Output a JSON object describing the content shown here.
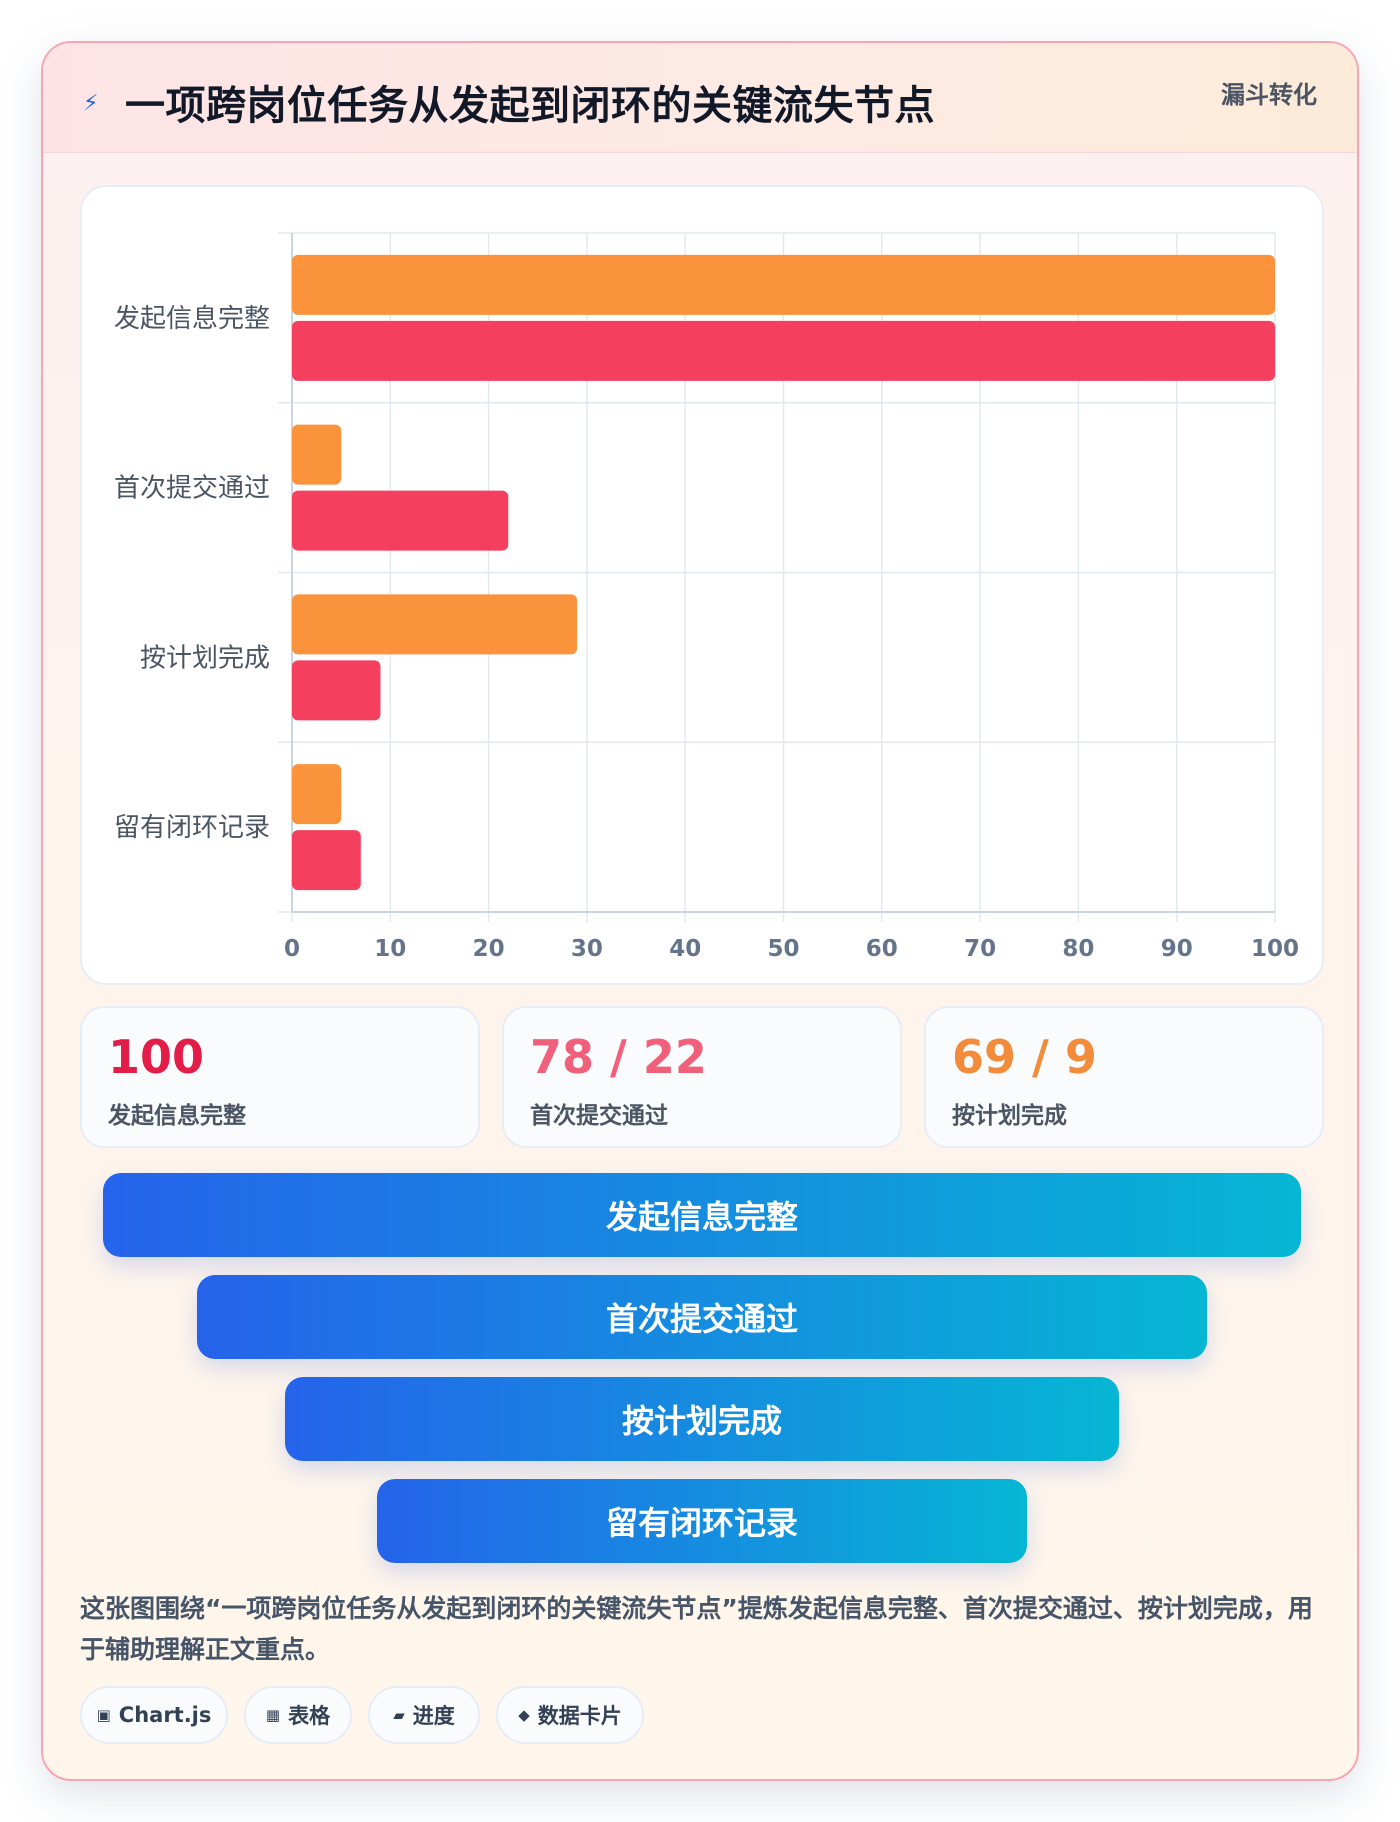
{
  "header": {
    "icon": "lightning-bolt-icon",
    "title": "一项跨岗位任务从发起到闭环的关键流失节点",
    "tag": "漏斗转化"
  },
  "chart_data": {
    "type": "bar",
    "orientation": "horizontal",
    "categories": [
      "发起信息完整",
      "首次提交通过",
      "按计划完成",
      "留有闭环记录"
    ],
    "series": [
      {
        "color": "#fb923c",
        "values": [
          100,
          5,
          29,
          5
        ]
      },
      {
        "color": "#f43f5e",
        "values": [
          100,
          22,
          9,
          7
        ]
      }
    ],
    "xlim": [
      0,
      100
    ],
    "xticks": [
      0,
      10,
      20,
      30,
      40,
      50,
      60,
      70,
      80,
      90,
      100
    ],
    "grid": true,
    "legend": "none"
  },
  "stats": [
    {
      "value": "100",
      "label": "发起信息完整",
      "color": "#e11d48"
    },
    {
      "value": "78 / 22",
      "label": "首次提交通过",
      "color": "#f0607a"
    },
    {
      "value": "69 / 9",
      "label": "按计划完成",
      "color": "#f28b3a"
    }
  ],
  "funnel": [
    {
      "label": "发起信息完整"
    },
    {
      "label": "首次提交通过"
    },
    {
      "label": "按计划完成"
    },
    {
      "label": "留有闭环记录"
    }
  ],
  "caption": "这张图围绕“一项跨岗位任务从发起到闭环的关键流失节点”提炼发起信息完整、首次提交通过、按计划完成，用于辅助理解正文重点。",
  "chips": [
    {
      "icon": "square-icon",
      "glyph": "▣",
      "label": "Chart.js"
    },
    {
      "icon": "table-icon",
      "glyph": "▦",
      "label": "表格"
    },
    {
      "icon": "progress-icon",
      "glyph": "▰",
      "label": "进度"
    },
    {
      "icon": "diamond-icon",
      "glyph": "◆",
      "label": "数据卡片"
    }
  ]
}
